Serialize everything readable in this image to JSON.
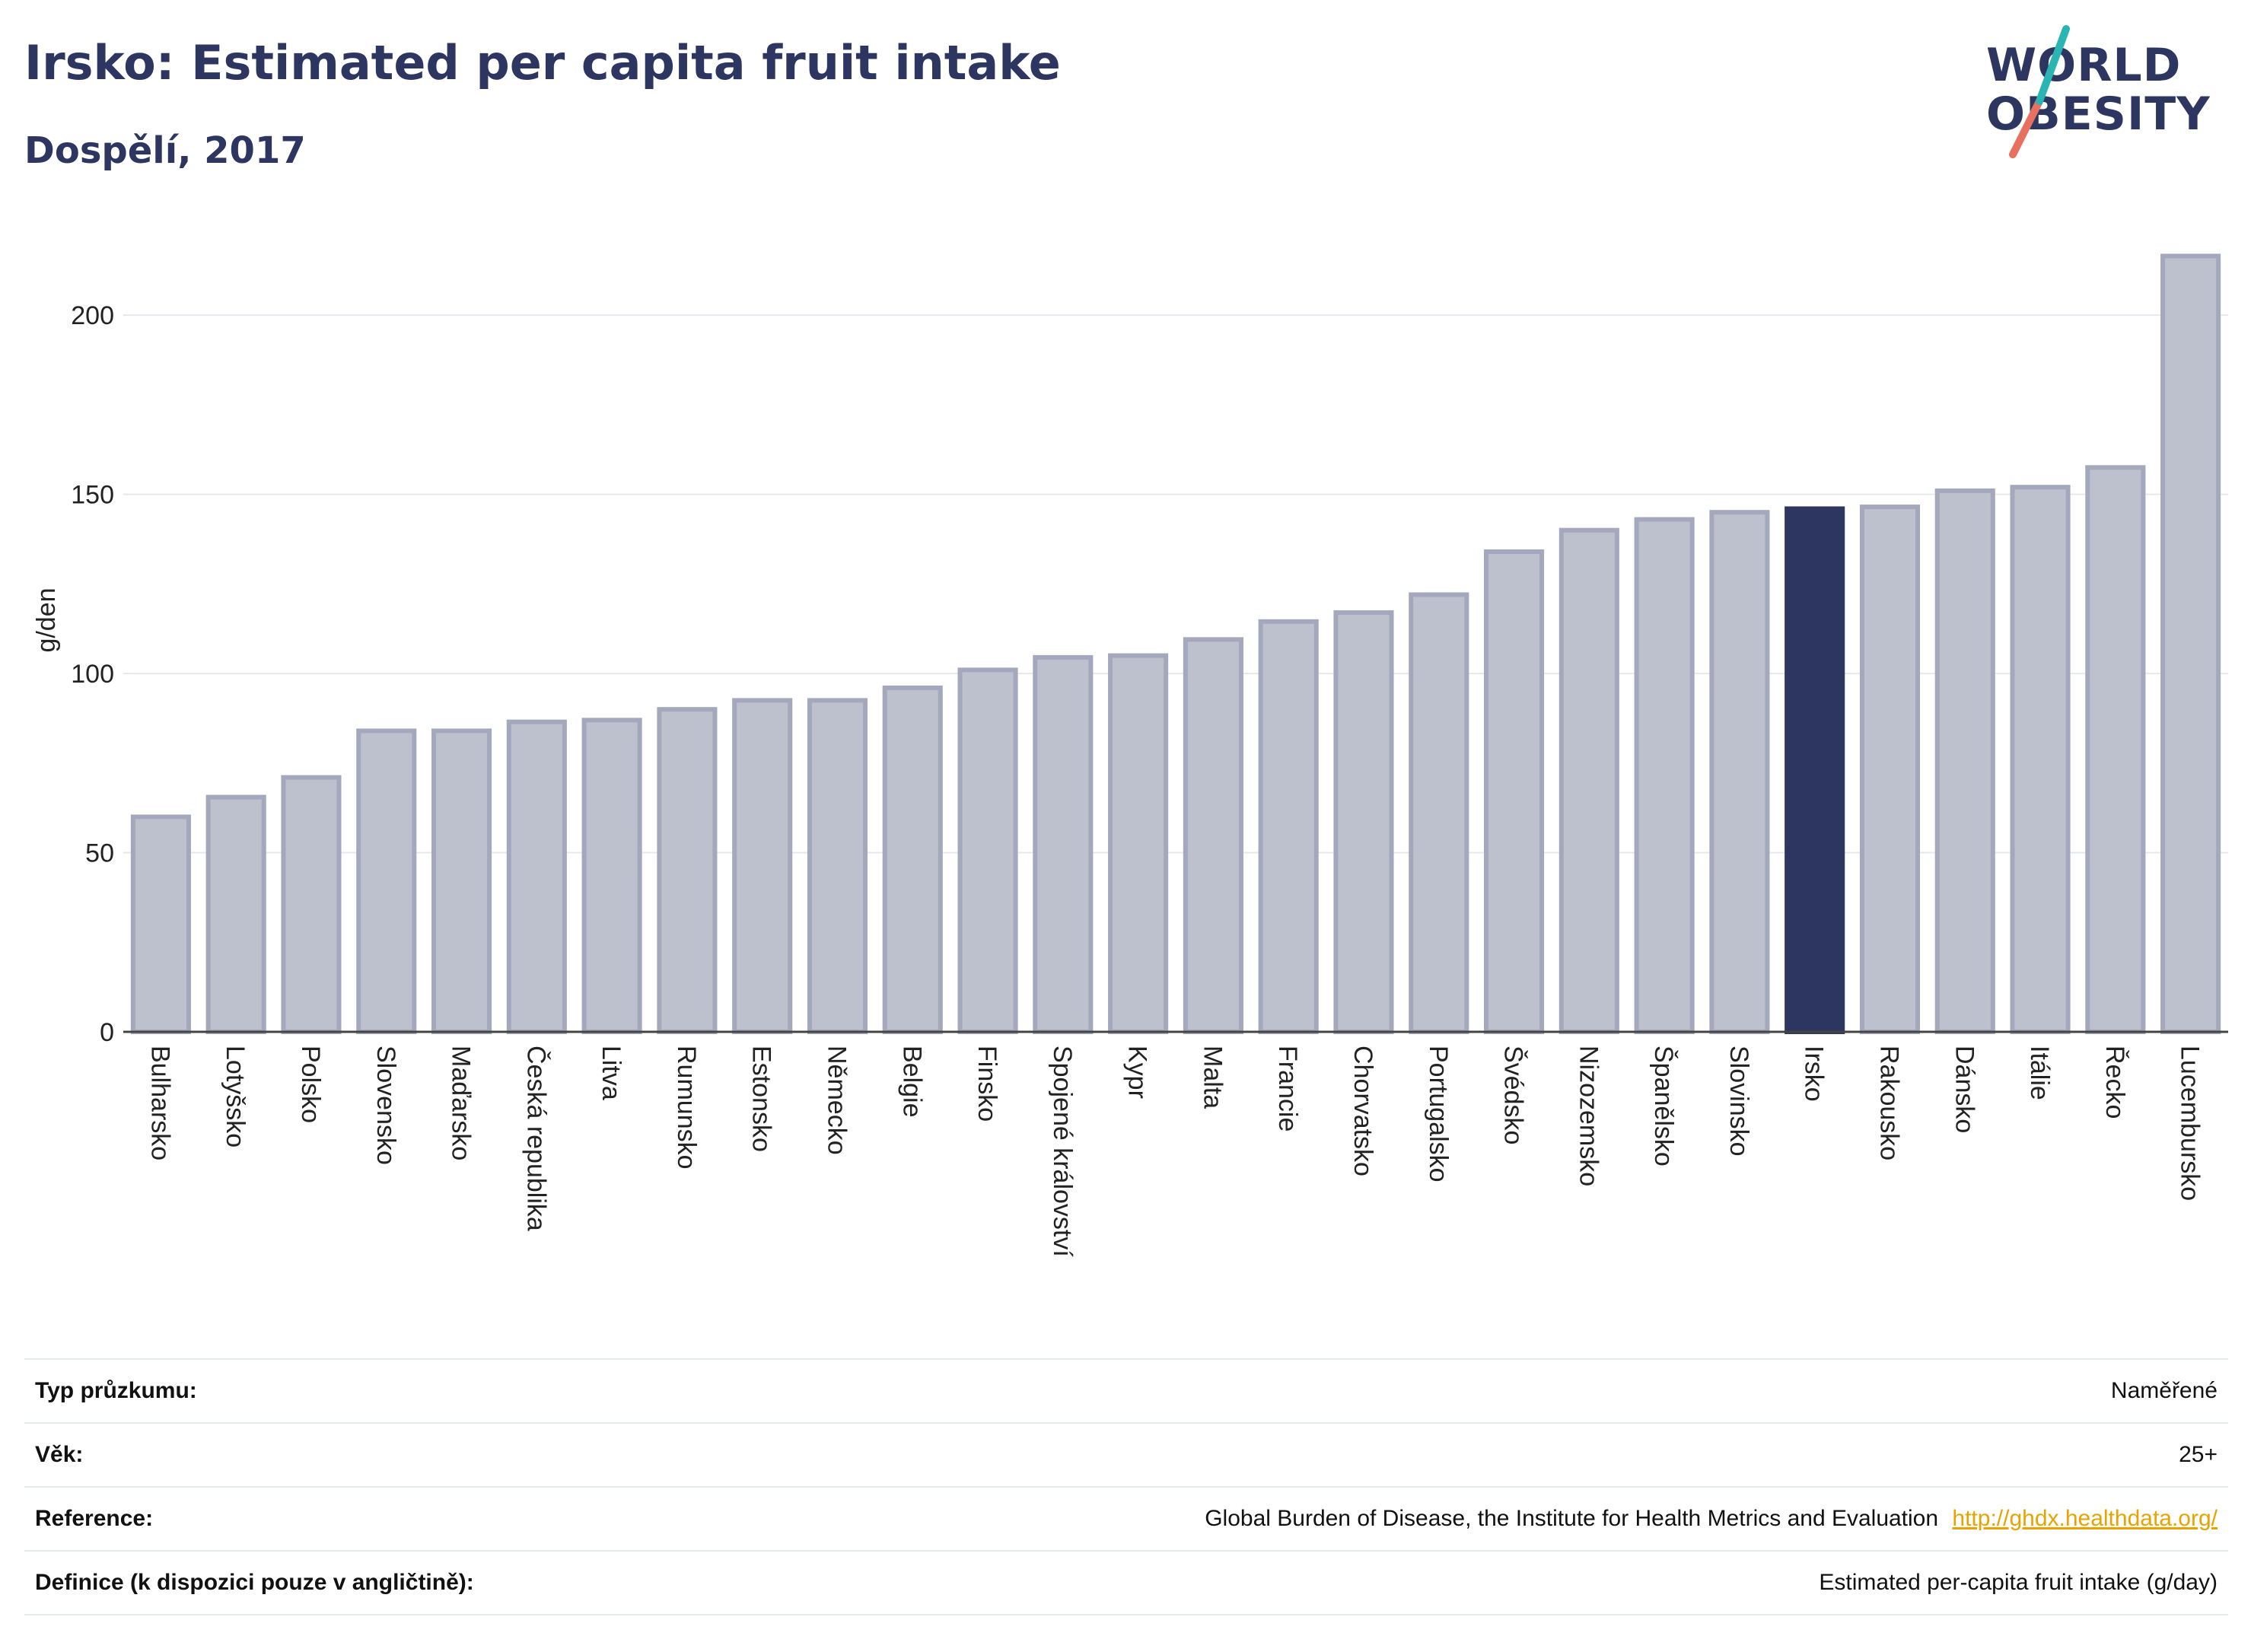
{
  "header": {
    "title": "Irsko: Estimated per capita fruit intake",
    "subtitle": "Dospělí, 2017"
  },
  "logo": {
    "line1": "WORLD",
    "line2": "OBESITY"
  },
  "colors": {
    "bar_fill": "#bdc0cd",
    "bar_stroke": "#a3a8bd",
    "highlight": "#2c3660",
    "grid": "#e6e8ef",
    "text": "#222222"
  },
  "chart_data": {
    "type": "bar",
    "title": "Irsko: Estimated per capita fruit intake",
    "subtitle": "Dospělí, 2017",
    "ylabel": "g/den",
    "xlabel": "",
    "ylim": [
      0,
      220
    ],
    "yticks": [
      0,
      50,
      100,
      150,
      200
    ],
    "grid": true,
    "highlight": "Irsko",
    "categories": [
      "Bulharsko",
      "Lotyšsko",
      "Polsko",
      "Slovensko",
      "Maďarsko",
      "Česká republika",
      "Litva",
      "Rumunsko",
      "Estonsko",
      "Německo",
      "Belgie",
      "Finsko",
      "Spojené království",
      "Kypr",
      "Malta",
      "Francie",
      "Chorvatsko",
      "Portugalsko",
      "Švédsko",
      "Nizozemsko",
      "Španělsko",
      "Slovinsko",
      "Irsko",
      "Rakousko",
      "Dánsko",
      "Itálie",
      "Řecko",
      "Lucembursko"
    ],
    "values": [
      60,
      65.5,
      71,
      84,
      84,
      86.5,
      87,
      90,
      92.5,
      92.5,
      96,
      101,
      104.5,
      105,
      109.5,
      114.5,
      117,
      122,
      134,
      140,
      143,
      145,
      146,
      146.5,
      151,
      152,
      157.5,
      216.5
    ]
  },
  "meta": [
    {
      "key": "Typ průzkumu:",
      "value": "Naměřené"
    },
    {
      "key": "Věk:",
      "value": "25+"
    },
    {
      "key": "Reference:",
      "value": "Global Burden of Disease, the Institute for Health Metrics and Evaluation",
      "link": "http://ghdx.healthdata.org/"
    },
    {
      "key": "Definice (k dispozici pouze v angličtině):",
      "value": "Estimated per-capita fruit intake (g/day)"
    }
  ]
}
